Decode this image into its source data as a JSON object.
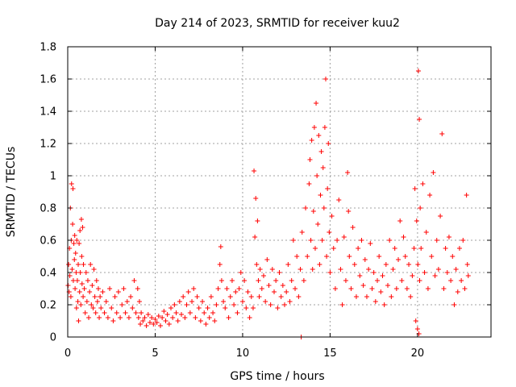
{
  "chart_data": {
    "type": "scatter",
    "title": "Day 214 of 2023, SRMTID for receiver kuu2",
    "xlabel": "GPS time / hours",
    "ylabel": "SRMTID / TECUs",
    "xlim": [
      0,
      24.2
    ],
    "ylim": [
      0,
      1.8
    ],
    "xticks": [
      0,
      5,
      10,
      15,
      20
    ],
    "xtick_labels": [
      "0",
      "5",
      "10",
      "15",
      "20"
    ],
    "yticks": [
      0,
      0.2,
      0.4,
      0.6,
      0.8,
      1,
      1.2,
      1.4,
      1.6,
      1.8
    ],
    "ytick_labels": [
      "0",
      "0.2",
      "0.4",
      "0.6",
      "0.8",
      "1",
      "1.2",
      "1.4",
      "1.6",
      "1.8"
    ],
    "grid": true,
    "marker": "+",
    "series": [
      {
        "name": "kuu2",
        "color": "#ff0000",
        "points": [
          [
            0.02,
            0.32
          ],
          [
            0.05,
            0.45
          ],
          [
            0.08,
            0.28
          ],
          [
            0.1,
            0.55
          ],
          [
            0.12,
            0.38
          ],
          [
            0.15,
            0.8
          ],
          [
            0.18,
            0.25
          ],
          [
            0.2,
            0.6
          ],
          [
            0.22,
            0.95
          ],
          [
            0.25,
            0.42
          ],
          [
            0.28,
            0.7
          ],
          [
            0.3,
            0.92
          ],
          [
            0.32,
            0.35
          ],
          [
            0.35,
            0.58
          ],
          [
            0.38,
            0.48
          ],
          [
            0.4,
            0.63
          ],
          [
            0.42,
            0.3
          ],
          [
            0.45,
            0.52
          ],
          [
            0.48,
            0.4
          ],
          [
            0.5,
            0.18
          ],
          [
            0.52,
            0.6
          ],
          [
            0.55,
            0.35
          ],
          [
            0.58,
            0.22
          ],
          [
            0.6,
            0.45
          ],
          [
            0.62,
            0.1
          ],
          [
            0.65,
            0.58
          ],
          [
            0.68,
            0.28
          ],
          [
            0.7,
            0.66
          ],
          [
            0.72,
            0.4
          ],
          [
            0.75,
            0.2
          ],
          [
            0.78,
            0.73
          ],
          [
            0.8,
            0.5
          ],
          [
            0.82,
            0.33
          ],
          [
            0.85,
            0.68
          ],
          [
            0.88,
            0.25
          ],
          [
            0.9,
            0.45
          ],
          [
            0.95,
            0.3
          ],
          [
            1.0,
            0.15
          ],
          [
            1.05,
            0.4
          ],
          [
            1.1,
            0.22
          ],
          [
            1.15,
            0.35
          ],
          [
            1.2,
            0.12
          ],
          [
            1.25,
            0.28
          ],
          [
            1.3,
            0.45
          ],
          [
            1.35,
            0.2
          ],
          [
            1.4,
            0.32
          ],
          [
            1.45,
            0.18
          ],
          [
            1.5,
            0.42
          ],
          [
            1.55,
            0.25
          ],
          [
            1.6,
            0.15
          ],
          [
            1.65,
            0.35
          ],
          [
            1.7,
            0.22
          ],
          [
            1.75,
            0.3
          ],
          [
            1.8,
            0.12
          ],
          [
            1.85,
            0.25
          ],
          [
            1.9,
            0.18
          ],
          [
            2.0,
            0.28
          ],
          [
            2.1,
            0.15
          ],
          [
            2.2,
            0.22
          ],
          [
            2.3,
            0.12
          ],
          [
            2.4,
            0.3
          ],
          [
            2.5,
            0.18
          ],
          [
            2.6,
            0.1
          ],
          [
            2.7,
            0.25
          ],
          [
            2.8,
            0.15
          ],
          [
            2.9,
            0.28
          ],
          [
            3.0,
            0.12
          ],
          [
            3.1,
            0.2
          ],
          [
            3.2,
            0.3
          ],
          [
            3.3,
            0.15
          ],
          [
            3.4,
            0.22
          ],
          [
            3.5,
            0.12
          ],
          [
            3.6,
            0.25
          ],
          [
            3.7,
            0.18
          ],
          [
            3.8,
            0.35
          ],
          [
            3.9,
            0.15
          ],
          [
            4.0,
            0.3
          ],
          [
            4.05,
            0.12
          ],
          [
            4.1,
            0.22
          ],
          [
            4.15,
            0.08
          ],
          [
            4.2,
            0.15
          ],
          [
            4.3,
            0.1
          ],
          [
            4.4,
            0.12
          ],
          [
            4.5,
            0.07
          ],
          [
            4.6,
            0.14
          ],
          [
            4.7,
            0.09
          ],
          [
            4.8,
            0.12
          ],
          [
            4.9,
            0.08
          ],
          [
            5.0,
            0.11
          ],
          [
            5.1,
            0.09
          ],
          [
            5.2,
            0.13
          ],
          [
            5.3,
            0.07
          ],
          [
            5.4,
            0.12
          ],
          [
            5.5,
            0.16
          ],
          [
            5.6,
            0.1
          ],
          [
            5.7,
            0.14
          ],
          [
            5.8,
            0.08
          ],
          [
            5.9,
            0.18
          ],
          [
            6.0,
            0.12
          ],
          [
            6.1,
            0.2
          ],
          [
            6.2,
            0.15
          ],
          [
            6.3,
            0.1
          ],
          [
            6.4,
            0.22
          ],
          [
            6.5,
            0.14
          ],
          [
            6.6,
            0.25
          ],
          [
            6.7,
            0.12
          ],
          [
            6.8,
            0.2
          ],
          [
            6.9,
            0.28
          ],
          [
            7.0,
            0.15
          ],
          [
            7.1,
            0.22
          ],
          [
            7.2,
            0.3
          ],
          [
            7.3,
            0.12
          ],
          [
            7.4,
            0.25
          ],
          [
            7.5,
            0.18
          ],
          [
            7.6,
            0.1
          ],
          [
            7.7,
            0.22
          ],
          [
            7.8,
            0.15
          ],
          [
            7.9,
            0.08
          ],
          [
            8.0,
            0.18
          ],
          [
            8.1,
            0.12
          ],
          [
            8.2,
            0.25
          ],
          [
            8.3,
            0.15
          ],
          [
            8.4,
            0.1
          ],
          [
            8.5,
            0.2
          ],
          [
            8.6,
            0.3
          ],
          [
            8.7,
            0.45
          ],
          [
            8.75,
            0.56
          ],
          [
            8.8,
            0.35
          ],
          [
            8.9,
            0.22
          ],
          [
            9.0,
            0.18
          ],
          [
            9.1,
            0.3
          ],
          [
            9.2,
            0.12
          ],
          [
            9.3,
            0.25
          ],
          [
            9.4,
            0.35
          ],
          [
            9.5,
            0.2
          ],
          [
            9.6,
            0.28
          ],
          [
            9.7,
            0.15
          ],
          [
            9.8,
            0.3
          ],
          [
            9.9,
            0.4
          ],
          [
            10.0,
            0.22
          ],
          [
            10.1,
            0.35
          ],
          [
            10.2,
            0.18
          ],
          [
            10.3,
            0.28
          ],
          [
            10.4,
            0.12
          ],
          [
            10.5,
            0.25
          ],
          [
            10.6,
            0.18
          ],
          [
            10.65,
            1.03
          ],
          [
            10.7,
            0.62
          ],
          [
            10.75,
            0.86
          ],
          [
            10.8,
            0.45
          ],
          [
            10.85,
            0.72
          ],
          [
            10.9,
            0.35
          ],
          [
            10.95,
            0.25
          ],
          [
            11.0,
            0.42
          ],
          [
            11.1,
            0.3
          ],
          [
            11.2,
            0.38
          ],
          [
            11.3,
            0.22
          ],
          [
            11.4,
            0.48
          ],
          [
            11.5,
            0.32
          ],
          [
            11.6,
            0.2
          ],
          [
            11.7,
            0.42
          ],
          [
            11.8,
            0.28
          ],
          [
            11.9,
            0.35
          ],
          [
            12.0,
            0.18
          ],
          [
            12.1,
            0.4
          ],
          [
            12.2,
            0.25
          ],
          [
            12.3,
            0.32
          ],
          [
            12.4,
            0.2
          ],
          [
            12.5,
            0.28
          ],
          [
            12.6,
            0.45
          ],
          [
            12.7,
            0.22
          ],
          [
            12.8,
            0.35
          ],
          [
            12.9,
            0.6
          ],
          [
            13.0,
            0.3
          ],
          [
            13.1,
            0.5
          ],
          [
            13.2,
            0.25
          ],
          [
            13.3,
            0.42
          ],
          [
            13.35,
            0.0
          ],
          [
            13.4,
            0.65
          ],
          [
            13.5,
            0.35
          ],
          [
            13.6,
            0.8
          ],
          [
            13.7,
            0.5
          ],
          [
            13.8,
            0.95
          ],
          [
            13.85,
            1.1
          ],
          [
            13.9,
            0.6
          ],
          [
            13.95,
            1.22
          ],
          [
            14.0,
            0.42
          ],
          [
            14.05,
            0.78
          ],
          [
            14.1,
            1.3
          ],
          [
            14.15,
            0.55
          ],
          [
            14.2,
            1.45
          ],
          [
            14.25,
            1.0
          ],
          [
            14.3,
            0.7
          ],
          [
            14.35,
            1.25
          ],
          [
            14.4,
            0.45
          ],
          [
            14.45,
            0.88
          ],
          [
            14.5,
            1.15
          ],
          [
            14.55,
            0.6
          ],
          [
            14.6,
            1.05
          ],
          [
            14.65,
            0.8
          ],
          [
            14.7,
            1.3
          ],
          [
            14.75,
            1.6
          ],
          [
            14.8,
            0.5
          ],
          [
            14.85,
            0.92
          ],
          [
            14.9,
            1.2
          ],
          [
            14.95,
            0.65
          ],
          [
            15.0,
            0.4
          ],
          [
            15.1,
            0.75
          ],
          [
            15.2,
            0.55
          ],
          [
            15.3,
            0.3
          ],
          [
            15.4,
            0.6
          ],
          [
            15.5,
            0.85
          ],
          [
            15.6,
            0.42
          ],
          [
            15.7,
            0.2
          ],
          [
            15.8,
            0.62
          ],
          [
            15.9,
            0.35
          ],
          [
            16.0,
            1.02
          ],
          [
            16.05,
            0.78
          ],
          [
            16.1,
            0.5
          ],
          [
            16.2,
            0.3
          ],
          [
            16.3,
            0.68
          ],
          [
            16.4,
            0.45
          ],
          [
            16.5,
            0.25
          ],
          [
            16.6,
            0.55
          ],
          [
            16.7,
            0.38
          ],
          [
            16.8,
            0.6
          ],
          [
            16.9,
            0.32
          ],
          [
            17.0,
            0.48
          ],
          [
            17.1,
            0.25
          ],
          [
            17.2,
            0.42
          ],
          [
            17.3,
            0.58
          ],
          [
            17.4,
            0.3
          ],
          [
            17.5,
            0.4
          ],
          [
            17.6,
            0.22
          ],
          [
            17.7,
            0.35
          ],
          [
            17.8,
            0.5
          ],
          [
            17.9,
            0.28
          ],
          [
            18.0,
            0.38
          ],
          [
            18.1,
            0.2
          ],
          [
            18.2,
            0.45
          ],
          [
            18.3,
            0.32
          ],
          [
            18.4,
            0.6
          ],
          [
            18.5,
            0.25
          ],
          [
            18.6,
            0.42
          ],
          [
            18.7,
            0.55
          ],
          [
            18.8,
            0.3
          ],
          [
            18.9,
            0.48
          ],
          [
            19.0,
            0.72
          ],
          [
            19.1,
            0.35
          ],
          [
            19.2,
            0.62
          ],
          [
            19.3,
            0.5
          ],
          [
            19.4,
            0.3
          ],
          [
            19.5,
            0.45
          ],
          [
            19.6,
            0.25
          ],
          [
            19.7,
            0.38
          ],
          [
            19.8,
            0.55
          ],
          [
            19.85,
            0.92
          ],
          [
            19.9,
            0.1
          ],
          [
            19.95,
            0.72
          ],
          [
            20.0,
            0.05
          ],
          [
            20.02,
            0.45
          ],
          [
            20.05,
            1.65
          ],
          [
            20.08,
            0.02
          ],
          [
            20.1,
            1.35
          ],
          [
            20.12,
            0.35
          ],
          [
            20.15,
            0.8
          ],
          [
            20.2,
            0.55
          ],
          [
            20.3,
            0.95
          ],
          [
            20.4,
            0.4
          ],
          [
            20.5,
            0.65
          ],
          [
            20.6,
            0.3
          ],
          [
            20.7,
            0.88
          ],
          [
            20.8,
            0.5
          ],
          [
            20.9,
            1.02
          ],
          [
            21.0,
            0.38
          ],
          [
            21.1,
            0.6
          ],
          [
            21.2,
            0.42
          ],
          [
            21.3,
            0.75
          ],
          [
            21.4,
            1.26
          ],
          [
            21.5,
            0.3
          ],
          [
            21.6,
            0.55
          ],
          [
            21.7,
            0.4
          ],
          [
            21.8,
            0.62
          ],
          [
            21.9,
            0.35
          ],
          [
            22.0,
            0.5
          ],
          [
            22.1,
            0.2
          ],
          [
            22.2,
            0.42
          ],
          [
            22.3,
            0.28
          ],
          [
            22.4,
            0.55
          ],
          [
            22.5,
            0.35
          ],
          [
            22.6,
            0.6
          ],
          [
            22.7,
            0.3
          ],
          [
            22.8,
            0.88
          ],
          [
            22.85,
            0.45
          ],
          [
            22.9,
            0.38
          ]
        ]
      }
    ]
  }
}
